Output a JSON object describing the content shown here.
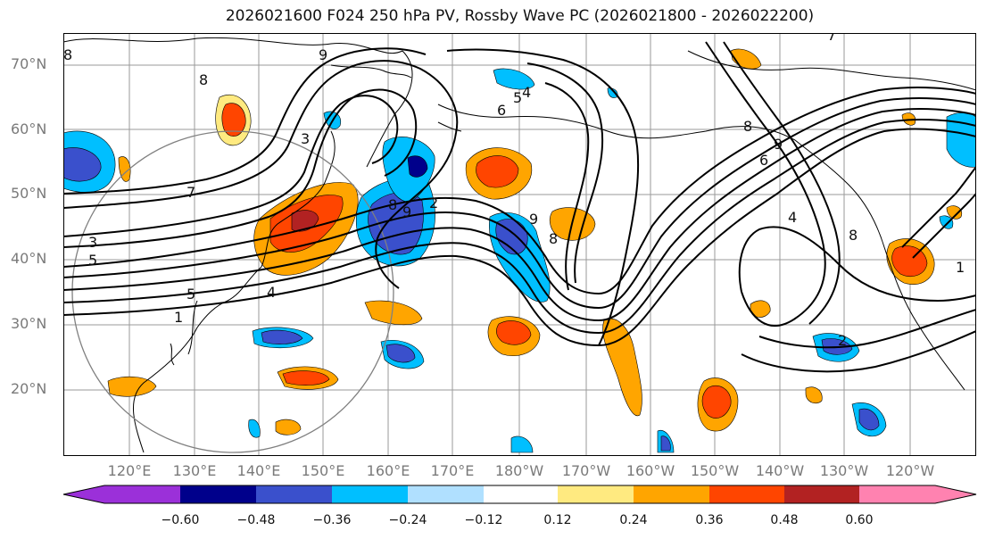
{
  "title": "2026021600 F024 250 hPa PV, Rossby Wave PC (2026021800 - 2026022200)",
  "lat_labels": [
    "70°N",
    "60°N",
    "50°N",
    "40°N",
    "30°N",
    "20°N"
  ],
  "lon_labels": [
    "120°E",
    "130°E",
    "140°E",
    "150°E",
    "160°E",
    "170°E",
    "180°W",
    "170°W",
    "160°W",
    "150°W",
    "140°W",
    "130°W",
    "120°W"
  ],
  "colorbar": {
    "ticks": [
      "−0.60",
      "−0.48",
      "−0.36",
      "−0.24",
      "−0.12",
      "0.12",
      "0.24",
      "0.36",
      "0.48",
      "0.60"
    ],
    "colors": [
      "#9b30d9",
      "#00008b",
      "#3a50cc",
      "#00bfff",
      "#b0e0ff",
      "#ffffff",
      "#ffea80",
      "#ffa500",
      "#ff4500",
      "#b22222",
      "#ff82b0"
    ]
  },
  "contour_labels": [
    "8",
    "9",
    "8",
    "7",
    "3",
    "5",
    "5",
    "4",
    "1",
    "3",
    "8",
    "9",
    "6",
    "5",
    "4",
    "9",
    "8",
    "2",
    "7",
    "6",
    "8",
    "9",
    "8",
    "2",
    "1",
    "4"
  ]
}
